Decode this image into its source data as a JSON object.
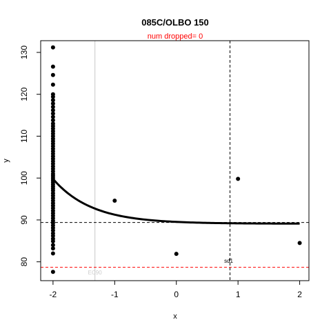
{
  "chart_data": {
    "type": "scatter",
    "title": "085C/OLBO 150",
    "subtitle": "num dropped= 0",
    "xlabel": "x",
    "ylabel": "y",
    "xlim": [
      -2.2,
      2.15
    ],
    "ylim": [
      75.5,
      132.8
    ],
    "x_ticks": [
      -2,
      -1,
      0,
      1,
      2
    ],
    "y_ticks": [
      80,
      90,
      100,
      110,
      120,
      130
    ],
    "points": [
      [
        -2,
        77.6
      ],
      [
        -2,
        82.0
      ],
      [
        -2,
        83.2
      ],
      [
        -2,
        84.0
      ],
      [
        -2,
        84.9
      ],
      [
        -2,
        85.5
      ],
      [
        -2,
        86.2
      ],
      [
        -2,
        86.8
      ],
      [
        -2,
        87.5
      ],
      [
        -2,
        88.1
      ],
      [
        -2,
        88.7
      ],
      [
        -2,
        89.3
      ],
      [
        -2,
        89.8
      ],
      [
        -2,
        90.4
      ],
      [
        -2,
        91.0
      ],
      [
        -2,
        91.6
      ],
      [
        -2,
        92.2
      ],
      [
        -2,
        92.8
      ],
      [
        -2,
        93.4
      ],
      [
        -2,
        94.0
      ],
      [
        -2,
        94.6
      ],
      [
        -2,
        95.2
      ],
      [
        -2,
        95.8
      ],
      [
        -2,
        96.4
      ],
      [
        -2,
        97.0
      ],
      [
        -2,
        97.5
      ],
      [
        -2,
        98.0
      ],
      [
        -2,
        98.5
      ],
      [
        -2,
        99.0
      ],
      [
        -2,
        99.5
      ],
      [
        -2,
        100.0
      ],
      [
        -2,
        100.5
      ],
      [
        -2,
        101.0
      ],
      [
        -2,
        101.6
      ],
      [
        -2,
        102.2
      ],
      [
        -2,
        102.8
      ],
      [
        -2,
        103.4
      ],
      [
        -2,
        104.0
      ],
      [
        -2,
        104.6
      ],
      [
        -2,
        105.2
      ],
      [
        -2,
        105.8
      ],
      [
        -2,
        106.4
      ],
      [
        -2,
        107.0
      ],
      [
        -2,
        107.6
      ],
      [
        -2,
        108.2
      ],
      [
        -2,
        108.8
      ],
      [
        -2,
        109.4
      ],
      [
        -2,
        110.0
      ],
      [
        -2,
        110.6
      ],
      [
        -2,
        111.2
      ],
      [
        -2,
        111.8
      ],
      [
        -2,
        112.4
      ],
      [
        -2,
        113.0
      ],
      [
        -2,
        113.8
      ],
      [
        -2,
        114.6
      ],
      [
        -2,
        115.4
      ],
      [
        -2,
        116.2
      ],
      [
        -2,
        117.0
      ],
      [
        -2,
        117.8
      ],
      [
        -2,
        118.6
      ],
      [
        -2,
        119.4
      ],
      [
        -2,
        120.0
      ],
      [
        -2,
        122.3
      ],
      [
        -2,
        124.6
      ],
      [
        -2,
        126.6
      ],
      [
        -2,
        131.2
      ],
      [
        -1,
        94.6
      ],
      [
        0,
        81.9
      ],
      [
        1,
        99.8
      ],
      [
        2,
        84.5
      ]
    ],
    "fit_curve": {
      "ymax": 99.8,
      "ymin": 89.1,
      "start": -2,
      "end": 2
    },
    "reference_lines": [
      {
        "orientation": "vertical",
        "value": -1.32,
        "style": "solid",
        "color": "#c8c8c8",
        "label": "EC90"
      },
      {
        "orientation": "vertical",
        "value": 0.87,
        "style": "dashed",
        "color": "#000000",
        "label": "sd1"
      },
      {
        "orientation": "horizontal",
        "value": 89.4,
        "style": "dashed",
        "color": "#000000",
        "label": ""
      },
      {
        "orientation": "horizontal",
        "value": 78.7,
        "style": "dashed",
        "color": "#ff0000",
        "label": ""
      }
    ],
    "colors": {
      "points": "#000000",
      "curve": "#000000",
      "subtitle": "#ff0000",
      "ec90_label": "#cccccc",
      "sd1_label": "#000000"
    }
  }
}
